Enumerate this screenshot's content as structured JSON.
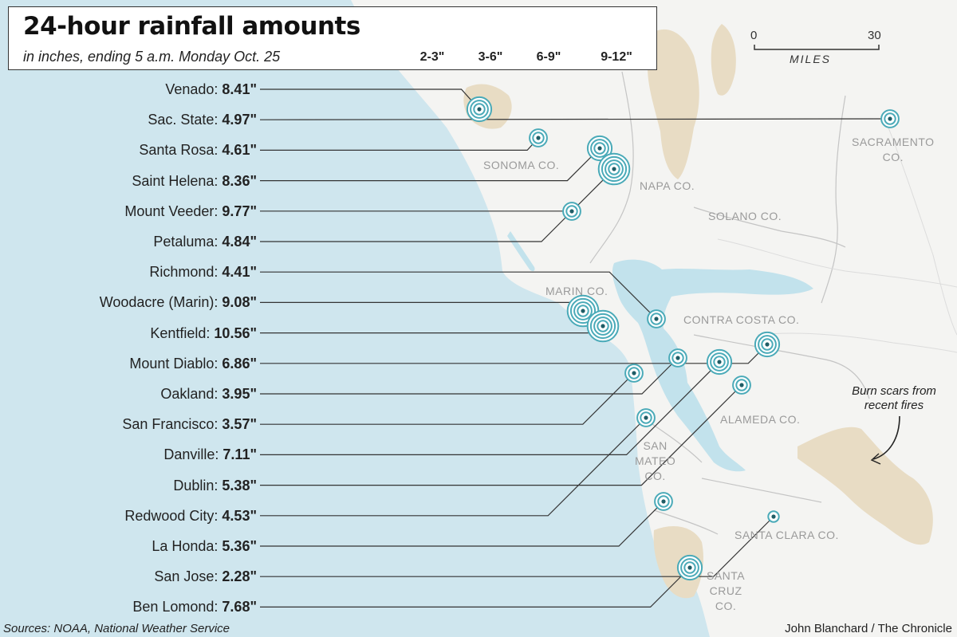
{
  "title": "24-hour rainfall amounts",
  "subtitle": "in inches, ending 5 a.m. Monday Oct. 25",
  "legend": [
    {
      "label": "2-3\"",
      "rings": 1
    },
    {
      "label": "3-6\"",
      "rings": 2
    },
    {
      "label": "6-9\"",
      "rings": 3
    },
    {
      "label": "9-12\"",
      "rings": 4
    }
  ],
  "scale": {
    "start": "0",
    "end": "30",
    "unit": "MILES"
  },
  "counties": {
    "sacramento": [
      "SACRAMENTO",
      "CO."
    ],
    "sonoma": "SONOMA CO.",
    "napa": "NAPA CO.",
    "solano": "SOLANO CO.",
    "marin": "MARIN CO.",
    "contra_costa": "CONTRA COSTA CO.",
    "alameda": "ALAMEDA CO.",
    "san_mateo": [
      "SAN",
      "MATEO",
      "CO."
    ],
    "santa_clara": "SANTA CLARA CO.",
    "santa_cruz": [
      "SANTA",
      "CRUZ",
      "CO."
    ]
  },
  "annotation": "Burn scars from recent fires",
  "stations": [
    {
      "name": "Venado:",
      "value": "8.41\"",
      "rings": 3
    },
    {
      "name": "Sac. State:",
      "value": "4.97\"",
      "rings": 2
    },
    {
      "name": "Santa Rosa:",
      "value": "4.61\"",
      "rings": 2
    },
    {
      "name": "Saint Helena:",
      "value": "8.36\"",
      "rings": 3
    },
    {
      "name": "Mount Veeder:",
      "value": "9.77\"",
      "rings": 4
    },
    {
      "name": "Petaluma:",
      "value": "4.84\"",
      "rings": 2
    },
    {
      "name": "Richmond:",
      "value": "4.41\"",
      "rings": 2
    },
    {
      "name": "Woodacre (Marin):",
      "value": "9.08\"",
      "rings": 4
    },
    {
      "name": "Kentfield:",
      "value": "10.56\"",
      "rings": 4
    },
    {
      "name": "Mount Diablo:",
      "value": "6.86\"",
      "rings": 3
    },
    {
      "name": "Oakland:",
      "value": "3.95\"",
      "rings": 2
    },
    {
      "name": "San Francisco:",
      "value": "3.57\"",
      "rings": 2
    },
    {
      "name": "Danville:",
      "value": "7.11\"",
      "rings": 3
    },
    {
      "name": "Dublin:",
      "value": "5.38\"",
      "rings": 2
    },
    {
      "name": "Redwood City:",
      "value": "4.53\"",
      "rings": 2
    },
    {
      "name": "La Honda:",
      "value": "5.36\"",
      "rings": 2
    },
    {
      "name": "San Jose:",
      "value": "2.28\"",
      "rings": 1
    },
    {
      "name": "Ben Lomond:",
      "value": "7.68\"",
      "rings": 3
    }
  ],
  "source": "Sources: NOAA, National Weather Service",
  "credit": "John Blanchard / The Chronicle",
  "colors": {
    "ocean": "#cfe6ee",
    "bay": "#c2e2ec",
    "land": "#f4f4f2",
    "burn": "#e8dcc4",
    "marker": "#4aaab8",
    "marker_dot": "#1f5d66",
    "leader": "#333333"
  }
}
